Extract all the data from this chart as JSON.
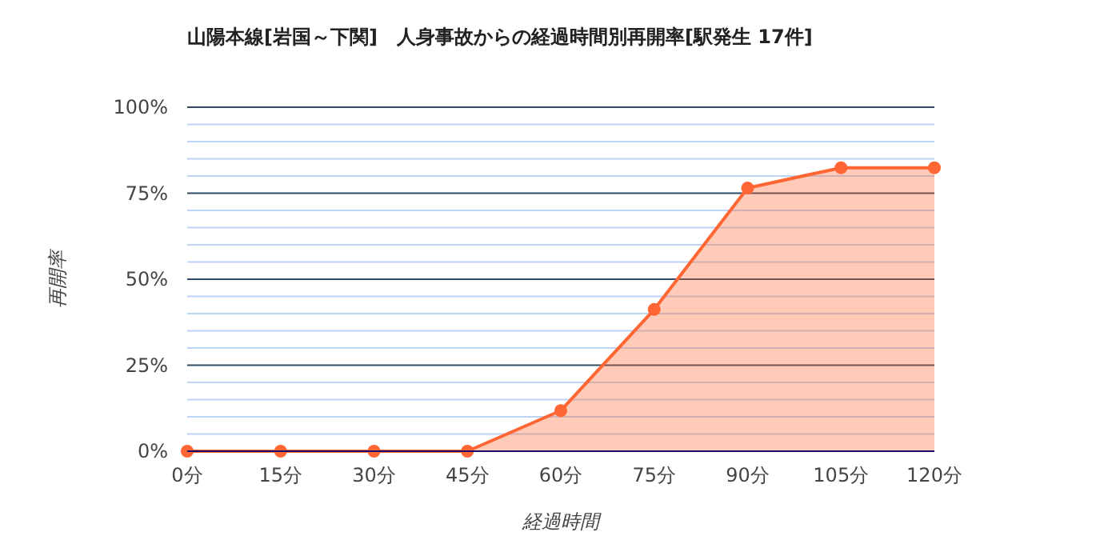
{
  "chart_data": {
    "type": "area",
    "title": "山陽本線[岩国～下関]　人身事故からの経過時間別再開率[駅発生 17件]",
    "xlabel": "経過時間",
    "ylabel": "再開率",
    "x": [
      0,
      15,
      30,
      45,
      60,
      75,
      90,
      105,
      120
    ],
    "series": [
      {
        "color": "#ff6633",
        "values": [
          0,
          0,
          0,
          0,
          11.8,
          41.2,
          76.5,
          82.4,
          82.4
        ]
      }
    ],
    "xlim": [
      0,
      120
    ],
    "xticks": [
      {
        "value": 0,
        "label": "0分"
      },
      {
        "value": 15,
        "label": "15分"
      },
      {
        "value": 30,
        "label": "30分"
      },
      {
        "value": 45,
        "label": "45分"
      },
      {
        "value": 60,
        "label": "60分"
      },
      {
        "value": 75,
        "label": "75分"
      },
      {
        "value": 90,
        "label": "90分"
      },
      {
        "value": 105,
        "label": "105分"
      },
      {
        "value": 120,
        "label": "120分"
      }
    ],
    "ylim": [
      0,
      100
    ],
    "yticks": [
      {
        "value": 0,
        "label": "0%"
      },
      {
        "value": 5,
        "label": null
      },
      {
        "value": 10,
        "label": null
      },
      {
        "value": 15,
        "label": null
      },
      {
        "value": 20,
        "label": null
      },
      {
        "value": 25,
        "label": "25%"
      },
      {
        "value": 30,
        "label": null
      },
      {
        "value": 35,
        "label": null
      },
      {
        "value": 40,
        "label": null
      },
      {
        "value": 45,
        "label": null
      },
      {
        "value": 50,
        "label": "50%"
      },
      {
        "value": 55,
        "label": null
      },
      {
        "value": 60,
        "label": null
      },
      {
        "value": 65,
        "label": null
      },
      {
        "value": 70,
        "label": null
      },
      {
        "value": 75,
        "label": "75%"
      },
      {
        "value": 80,
        "label": null
      },
      {
        "value": 85,
        "label": null
      },
      {
        "value": 90,
        "label": null
      },
      {
        "value": 95,
        "label": null
      },
      {
        "value": 100,
        "label": "100%"
      }
    ],
    "grid": true,
    "marker": "circle"
  }
}
